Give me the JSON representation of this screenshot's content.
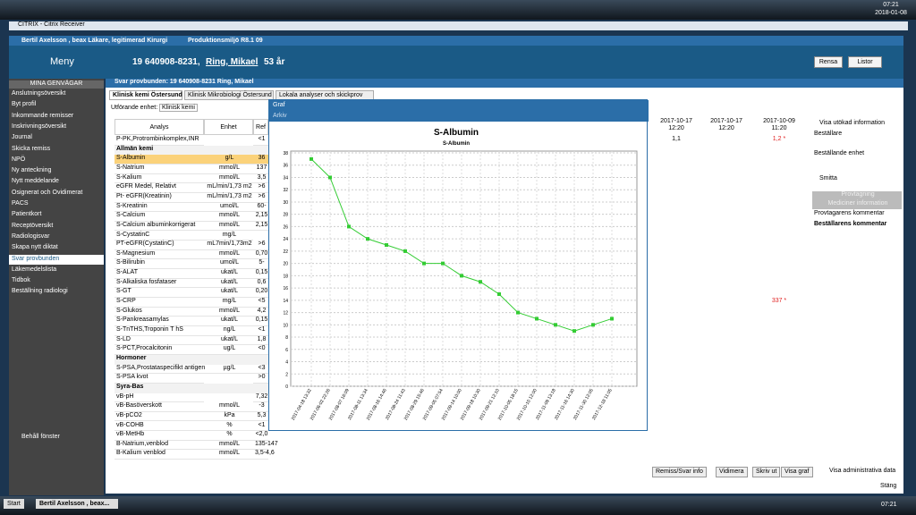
{
  "taskbar_top": {
    "time": "07:21",
    "date": "2018-01-08"
  },
  "window_title": "CITRIX - Citrix Receiver",
  "app_bar": {
    "user": "Bertil Axelsson , beax Läkare, legitimerad  Kirurgi",
    "environment": "Produktionsmiljö R8.1 09"
  },
  "header": {
    "menu": "Meny",
    "patient_id": "19 640908-8231,",
    "patient_name": "Ring, Mikael",
    "age": "53 år",
    "buttons": [
      "Rensa",
      "Listor"
    ]
  },
  "sidebar": {
    "title": "MINA GENVÄGAR",
    "items": [
      "Anslutningsöversikt",
      "Byt profil",
      "Inkommande remisser",
      "Inskrivningsöversikt",
      "Journal",
      "Skicka remiss",
      "NPÖ",
      "Ny anteckning",
      "Nytt meddelande",
      "Osignerat och Ovidimerat",
      "PACS",
      "Patientkort",
      "Receptöversikt",
      "Radiologisvar",
      "Skapa nytt diktat",
      "Svar provbunden",
      "Läkemedelslista",
      "Tidbok",
      "Beställning radiologi"
    ],
    "active": 15,
    "keep_window": "Behåll fönster"
  },
  "panel": {
    "title": "Svar provbunden: 19 640908-8231 Ring, Mikael",
    "tabs": [
      "Klinisk kemi Östersund",
      "Klinisk Mikrobiologi Östersund",
      "Lokala analyser och skickprov"
    ],
    "unit_label": "Utförande enhet:",
    "unit_value": "Klinisk kemi"
  },
  "table": {
    "headers": [
      "Analys",
      "Enhet",
      "Ref"
    ],
    "result_headers": [
      [
        "2017-10-17",
        "12:20"
      ],
      [
        "2017-10-17",
        "12:20"
      ],
      [
        "2017-10-09",
        "11:20"
      ]
    ],
    "rows": [
      [
        "P-PK,Protrombinkomplex,INR",
        null,
        "<1",
        "1,1",
        null,
        "1,2 *"
      ],
      [
        "Allmän kemi"
      ],
      [
        "S-Albumin",
        "g/L",
        "36"
      ],
      [
        "S-Natrium",
        "mmol/L",
        "137"
      ],
      [
        "S-Kalium",
        "mmol/L",
        "3,5"
      ],
      [
        "eGFR Medel, Relativt",
        "mL/min/1,73 m2",
        ">6"
      ],
      [
        "Pt- eGFR(Kreatinin)",
        "mL/min/1,73 m2",
        ">6"
      ],
      [
        "S-Kreatinin",
        "umol/L",
        "60-"
      ],
      [
        "S-Calcium",
        "mmol/L",
        "2,15"
      ],
      [
        "S-Calcium albuminkorrigerat",
        "mmol/L",
        "2,15"
      ],
      [
        "S-CystatinC",
        "mg/L"
      ],
      [
        "PT-eGFR(CystatinC)",
        "mL7min/1,73m2",
        ">6"
      ],
      [
        "S-Magnesium",
        "mmol/L",
        "0,70"
      ],
      [
        "S-Bilirubin",
        "umol/L",
        "5-"
      ],
      [
        "S-ALAT",
        "ukat/L",
        "0,15"
      ],
      [
        "S-Alkaliska fosfataser",
        "ukat/L",
        "0,6"
      ],
      [
        "S-GT",
        "ukat/L",
        "0,20"
      ],
      [
        "S-CRP",
        "mg/L",
        "<5",
        null,
        null,
        "337 *"
      ],
      [
        "S-Glukos",
        "mmol/L",
        "4,2"
      ],
      [
        "S-Pankreasamylas",
        "ukat/L",
        "0,15"
      ],
      [
        "S-TnTHS,Troponin T hS",
        "ng/L",
        "<1"
      ],
      [
        "S-LD",
        "ukat/L",
        "1,8"
      ],
      [
        "S-PCT,Procalcitonin",
        "ug/L",
        "<0"
      ],
      [
        "Hormoner"
      ],
      [
        "S-PSA,Prostataspecifikt antigen",
        "µg/L",
        "<3"
      ],
      [
        "S-PSA kvot",
        null,
        ">0"
      ],
      [
        "Syra-Bas"
      ],
      [
        "vB-pH",
        null,
        "7,32"
      ],
      [
        "vB-Basöverskott",
        "mmol/L",
        "-3"
      ],
      [
        "vB-pCO2",
        "kPa",
        "5,3"
      ],
      [
        "vB-COHB",
        "%",
        "<1"
      ],
      [
        "vB-MetHb",
        "%",
        "<2,0"
      ],
      [
        "B-Natrium,venblod",
        "mmol/L",
        "135-147"
      ],
      [
        "B-Kalium venblod",
        "mmol/L",
        "3,5-4,6"
      ]
    ]
  },
  "right_panel": {
    "items": [
      "Visa utökad information",
      "Beställare",
      "Beställande enhet",
      "Smitta",
      "Provtagning",
      "Mediciner information",
      "Provtagarens kommentar",
      "Beställarens kommentar"
    ]
  },
  "bottom_buttons": [
    "Remiss/Svar info",
    "Vidimera",
    "Skriv ut",
    "Visa graf",
    "Visa administrativa data"
  ],
  "close": "Stäng",
  "taskbar": {
    "start": "Start",
    "task": "Bertil Axelsson , beax...",
    "time": "07:21"
  },
  "graph_window": {
    "title": "Graf",
    "menu": "Arkiv"
  },
  "chart_data": {
    "type": "line",
    "title": "S-Albumin",
    "subtitle": "S-Albumin",
    "categories": [
      "2017-04-18 13:32",
      "2017-06-02 22:26",
      "2017-08-07 16:09",
      "2017-08-11 13:34",
      "2017-08-16 14:46",
      "2017-08-24 11:43",
      "2017-08-29 15:46",
      "2017-09-05 07:54",
      "2017-09-14 10:00",
      "2017-09-18 10:30",
      "2017-09-21 12:10",
      "2017-10-05 18:15",
      "2017-10-10 12:00",
      "2017-11-09 13:18",
      "2017-11-16 14:30",
      "2017-11-30 12:05",
      "2017-12-18 11:05"
    ],
    "values": [
      37,
      34,
      26,
      24,
      23,
      22,
      20,
      20,
      18,
      17,
      15,
      12,
      11,
      10,
      9,
      10,
      11
    ],
    "color": "#33cc33",
    "ylim": [
      0,
      38
    ],
    "yticks": [
      0,
      2,
      4,
      6,
      8,
      10,
      12,
      14,
      16,
      18,
      20,
      22,
      24,
      26,
      28,
      30,
      32,
      34,
      36,
      38
    ],
    "grid": true
  }
}
